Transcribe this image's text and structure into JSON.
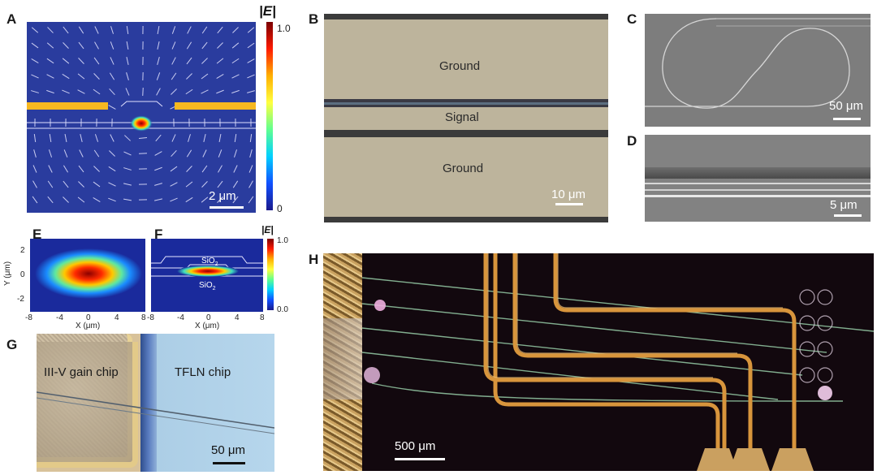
{
  "panels": {
    "A": {
      "letter": "A",
      "colorbar_title": "|E|",
      "colorbar_max": "1.0",
      "colorbar_min": "0",
      "scalebar": "2 μm"
    },
    "B": {
      "letter": "B",
      "ground_top": "Ground",
      "signal": "Signal",
      "ground_bottom": "Ground",
      "scalebar": "10 μm"
    },
    "C": {
      "letter": "C",
      "scalebar": "50 μm"
    },
    "D": {
      "letter": "D",
      "scalebar": "5 μm"
    },
    "E": {
      "letter": "E",
      "ylabel": "Y (μm)",
      "xlabel": "X (μm)",
      "xticks": [
        "-8",
        "-4",
        "0",
        "4",
        "8"
      ],
      "yticks": [
        "2",
        "0",
        "-2"
      ]
    },
    "F": {
      "letter": "F",
      "xlabel": "X (μm)",
      "xticks": [
        "-8",
        "-4",
        "0",
        "4",
        "8"
      ],
      "layer_top": "SiO",
      "layer_bottom": "SiO",
      "layer_sub": "2",
      "colorbar_title": "|E|",
      "colorbar_max": "1.0",
      "colorbar_min": "0.0"
    },
    "G": {
      "letter": "G",
      "left_chip": "III-V gain chip",
      "right_chip": "TFLN chip",
      "scalebar": "50 μm"
    },
    "H": {
      "letter": "H",
      "scalebar": "500 μm"
    }
  },
  "colors": {
    "field_bg": "#2a3c9e",
    "electrode": "#f7b820",
    "ground_metal": "#bdb49c",
    "gap": "#4a4a4a",
    "sem": "#7a7a7a"
  }
}
